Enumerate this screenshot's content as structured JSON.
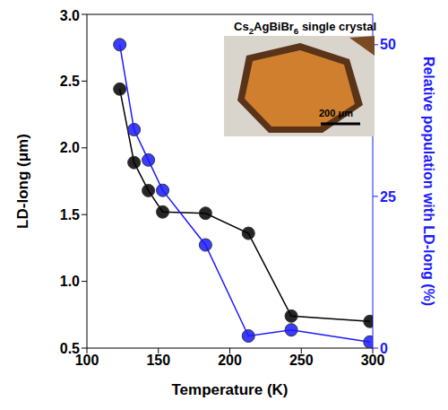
{
  "chart_data": {
    "type": "line",
    "xlabel": "Temperature (K)",
    "ylabel": "LD-long (μm)",
    "y2label": "Relative population with LD-long (%)",
    "x": [
      123,
      133,
      143,
      153,
      183,
      213,
      243,
      298
    ],
    "xlim": [
      100,
      300
    ],
    "xticks": [
      100,
      150,
      200,
      250,
      300
    ],
    "ylim": [
      0.5,
      3.0
    ],
    "yticks": [
      0.5,
      {
        "value": 1,
        "label": "1.0"
      },
      1.5,
      {
        "value": 2,
        "label": "2.0"
      },
      2.5,
      {
        "value": 3,
        "label": "3.0"
      }
    ],
    "y2lim": [
      0,
      55
    ],
    "y2ticks": [
      0,
      25,
      50
    ],
    "series": [
      {
        "name": "LD-long (μm)",
        "color": "#000000",
        "marker": "circle",
        "line_style": "solid",
        "values": [
          2.44,
          1.89,
          1.68,
          1.52,
          1.51,
          1.36,
          0.74,
          0.7
        ]
      },
      {
        "name": "Relative population with LD-long (%)",
        "color": "#1a1aff",
        "marker": "circle",
        "line_style": "solid",
        "axis": "y2",
        "values": [
          50,
          36,
          31,
          26,
          17,
          2,
          3,
          1
        ]
      }
    ],
    "annotations": [
      {
        "text": "Cs2AgBiBr6 single crystal"
      },
      {
        "text": "200 μm"
      }
    ]
  }
}
